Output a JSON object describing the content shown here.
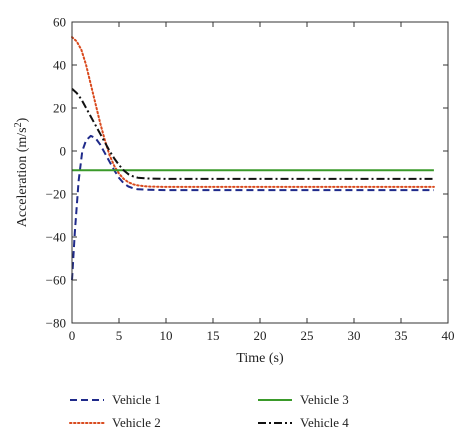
{
  "chart_data": {
    "type": "line",
    "xlabel": "Time (s)",
    "ylabel_base": "Acceleration (m/s",
    "ylabel_sup": "2",
    "ylabel_tail": ")",
    "xlim": [
      0,
      40
    ],
    "ylim": [
      -80,
      60
    ],
    "xticks": [
      0,
      5,
      10,
      15,
      20,
      25,
      30,
      35,
      40
    ],
    "yticks": [
      60,
      40,
      20,
      0,
      -20,
      -40,
      -60,
      -80
    ],
    "xtick_labels": [
      "0",
      "5",
      "10",
      "15",
      "20",
      "25",
      "30",
      "35",
      "40"
    ],
    "ytick_labels": [
      "60",
      "40",
      "20",
      "0",
      "−20",
      "−40",
      "−60",
      "−80"
    ],
    "grid": false,
    "legend_position": "bottom",
    "series": [
      {
        "name": "Vehicle 1",
        "color": "#1f2a8a",
        "style": "dashed",
        "x": [
          0,
          0.3,
          0.7,
          1.1,
          1.5,
          2,
          2.5,
          3,
          3.5,
          4,
          4.5,
          5,
          5.5,
          6,
          6.5,
          7,
          8,
          10,
          15,
          20,
          25,
          30,
          35,
          38.5
        ],
        "y": [
          -60,
          -38,
          -14,
          0,
          5,
          7,
          6,
          3,
          -1,
          -5,
          -9,
          -12.5,
          -15,
          -16.5,
          -17.3,
          -17.8,
          -18,
          -18.2,
          -18.2,
          -18.2,
          -18.2,
          -18.2,
          -18.2,
          -18.2
        ]
      },
      {
        "name": "Vehicle 2",
        "color": "#d94a1e",
        "style": "dotted",
        "x": [
          0,
          0.5,
          1,
          1.5,
          2,
          2.5,
          3,
          3.5,
          4,
          4.5,
          5,
          5.5,
          6,
          6.5,
          7,
          8,
          10,
          15,
          20,
          25,
          30,
          35,
          38.5
        ],
        "y": [
          53,
          51,
          47,
          40,
          31,
          22,
          13,
          5,
          -2,
          -7,
          -10.5,
          -13,
          -14.5,
          -15.5,
          -16,
          -16.5,
          -16.7,
          -16.7,
          -16.7,
          -16.7,
          -16.7,
          -16.7,
          -16.7
        ]
      },
      {
        "name": "Vehicle 3",
        "color": "#3a9a2a",
        "style": "solid",
        "x": [
          0,
          5,
          10,
          15,
          20,
          25,
          30,
          35,
          38.5
        ],
        "y": [
          -9,
          -9,
          -9,
          -9,
          -9,
          -9,
          -9,
          -9,
          -9
        ]
      },
      {
        "name": "Vehicle 4",
        "color": "#111111",
        "style": "dashdot",
        "x": [
          0,
          0.5,
          1,
          1.5,
          2,
          2.5,
          3,
          3.5,
          4,
          4.5,
          5,
          5.5,
          6,
          6.5,
          7,
          8,
          10,
          15,
          20,
          25,
          30,
          35,
          38.5
        ],
        "y": [
          29,
          27,
          24,
          20,
          16,
          12,
          8,
          4,
          0,
          -3.5,
          -6.5,
          -9,
          -10.8,
          -11.8,
          -12.4,
          -12.8,
          -13,
          -13,
          -13,
          -13,
          -13,
          -13,
          -13
        ]
      }
    ]
  }
}
